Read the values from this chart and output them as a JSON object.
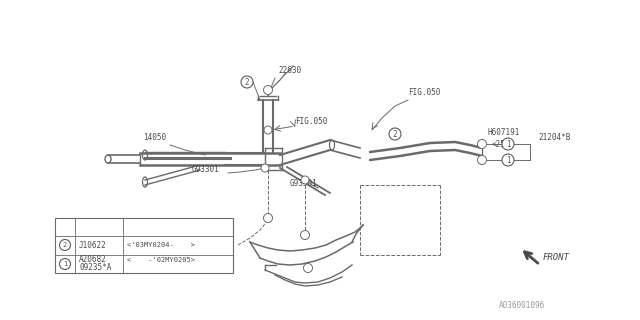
{
  "bg_color": "#ffffff",
  "line_color": "#6a6a6a",
  "text_color": "#4a4a4a",
  "fig_width": 6.4,
  "fig_height": 3.2,
  "diagram_id": "A036001096",
  "table_rows": [
    {
      "circle": "1",
      "col1": "09235*A",
      "col2": ""
    },
    {
      "circle": "2",
      "col1": "A20682",
      "col2": "<    -'02MY0205>"
    },
    {
      "circle": "2",
      "col1": "J10622",
      "col2": "<'03MY0204-    >"
    }
  ]
}
